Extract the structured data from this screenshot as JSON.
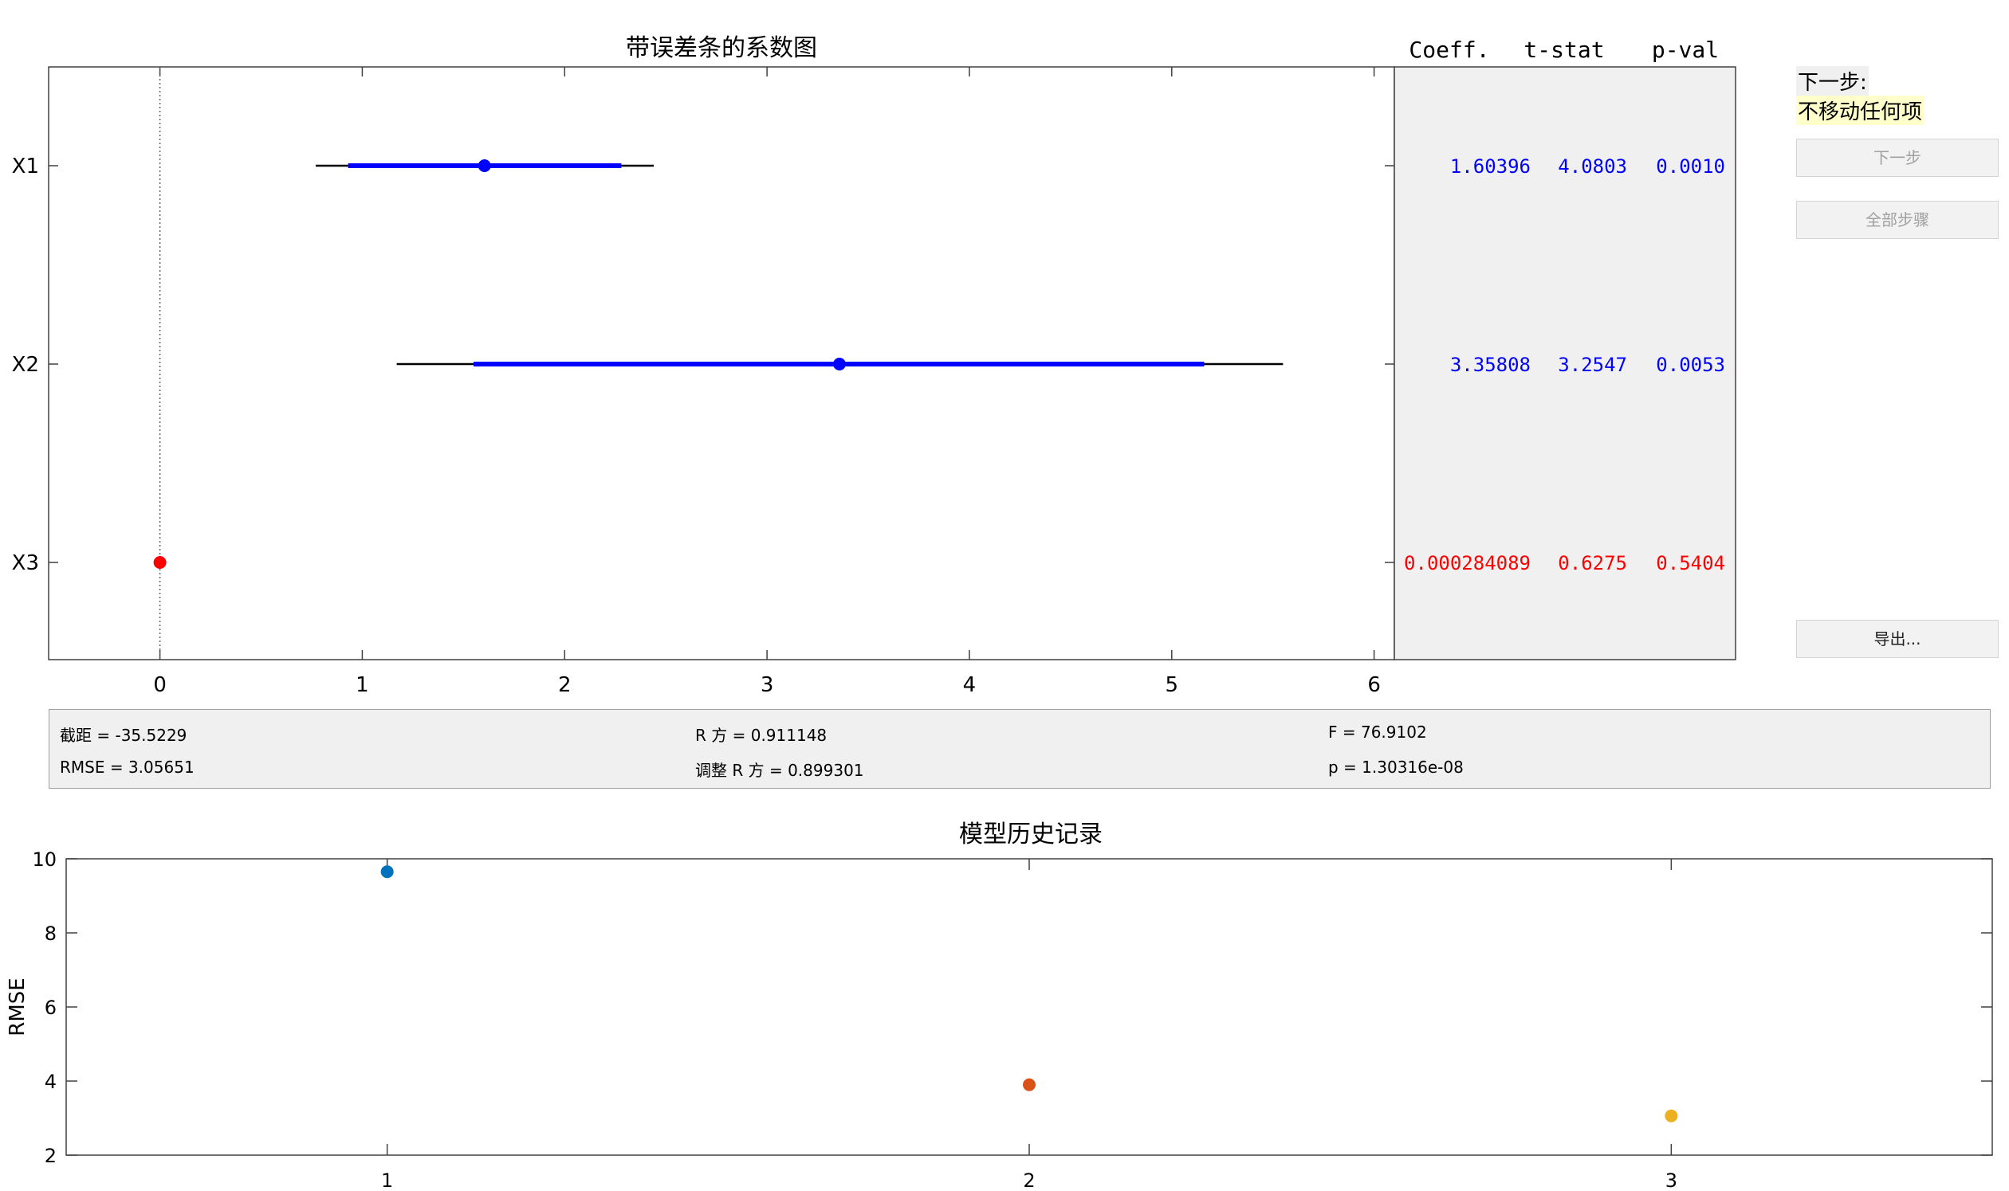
{
  "coef_plot": {
    "title": "带误差条的系数图",
    "x_ticks": [
      "0",
      "1",
      "2",
      "3",
      "4",
      "5",
      "6"
    ],
    "terms": [
      {
        "name": "X1",
        "estimate": 1.604,
        "ci_low": 0.93,
        "ci_high": 2.28,
        "ci_outer_low": 0.77,
        "ci_outer_high": 2.44,
        "in_model": true
      },
      {
        "name": "X2",
        "estimate": 3.358,
        "ci_low": 1.55,
        "ci_high": 5.16,
        "ci_outer_low": 1.17,
        "ci_outer_high": 5.55,
        "in_model": true
      },
      {
        "name": "X3",
        "estimate": 0.0,
        "in_model": false
      }
    ],
    "xlim": [
      -0.55,
      6.1
    ]
  },
  "coef_table": {
    "headers": [
      "Coeff.",
      "t-stat",
      "p-val"
    ],
    "rows": [
      {
        "coeff": "1.60396",
        "tstat": "4.0803",
        "pval": "0.0010",
        "in_model": true
      },
      {
        "coeff": "3.35808",
        "tstat": "3.2547",
        "pval": "0.0053",
        "in_model": true
      },
      {
        "coeff": "0.000284089",
        "tstat": "0.6275",
        "pval": "0.5404",
        "in_model": false
      }
    ]
  },
  "next_step": {
    "label": "下一步:",
    "value": "不移动任何项"
  },
  "buttons": {
    "next_step": "下一步",
    "all_steps": "全部步骤",
    "export": "导出..."
  },
  "stats": {
    "intercept": "截距 = -35.5229",
    "rsquared": "R 方 = 0.911148",
    "f": "F = 76.9102",
    "rmse": "RMSE = 3.05651",
    "adj_rsquared": "调整 R 方 = 0.899301",
    "p": "p = 1.30316e-08"
  },
  "history_plot": {
    "title": "模型历史记录",
    "ylabel": "RMSE",
    "y_ticks": [
      "2",
      "4",
      "6",
      "8",
      "10"
    ],
    "x_ticks": [
      "1",
      "2",
      "3"
    ],
    "ylim": [
      2,
      10
    ],
    "xlim": [
      0.5,
      3.5
    ]
  },
  "chart_data": [
    {
      "type": "scatter",
      "title": "带误差条的系数图",
      "categories": [
        "X1",
        "X2",
        "X3"
      ],
      "values": [
        1.604,
        3.358,
        0.0
      ],
      "ci": [
        [
          0.93,
          2.28
        ],
        [
          1.55,
          5.16
        ],
        null
      ],
      "xlim": [
        -0.55,
        6.1
      ],
      "grid": false
    },
    {
      "type": "scatter",
      "title": "模型历史记录",
      "xlabel": "",
      "ylabel": "RMSE",
      "x": [
        1,
        2,
        3
      ],
      "values": [
        9.65,
        3.9,
        3.06
      ],
      "colors": [
        "#0072bd",
        "#d95319",
        "#edb120"
      ],
      "ylim": [
        2,
        10
      ],
      "xlim": [
        0.5,
        3.5
      ],
      "grid": false
    }
  ],
  "colors": {
    "in_model": "#0000ff",
    "out_model": "#ff0000",
    "table_bg": "#f0f0f0"
  }
}
